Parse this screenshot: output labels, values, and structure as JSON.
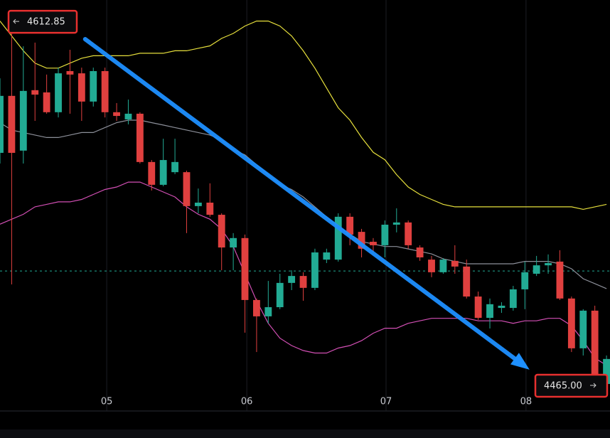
{
  "chart_data": {
    "type": "candlestick",
    "xlim": [
      0,
      52.3
    ],
    "ylim": [
      4455.6,
      4621.5
    ],
    "xticks": [
      {
        "value": 9.15,
        "label": "05"
      },
      {
        "value": 21.16,
        "label": "06"
      },
      {
        "value": 33.1,
        "label": "07"
      },
      {
        "value": 45.1,
        "label": "08"
      }
    ],
    "grid": true,
    "up_color": "#22ab94",
    "down_color": "#e0403f",
    "open": [
      4559.8,
      4582.8,
      4560.7,
      4585.1,
      4584.2,
      4576.2,
      4592.8,
      4591.9,
      4580.5,
      4592.8,
      4576.2,
      4573.3,
      4575.6,
      4556.1,
      4546.9,
      4552.0,
      4552.0,
      4538.3,
      4539.7,
      4534.8,
      4521.6,
      4525.4,
      4500.4,
      4493.8,
      4497.5,
      4507.3,
      4510.1,
      4505.3,
      4516.7,
      4516.7,
      4534.0,
      4527.9,
      4523.9,
      4522.5,
      4530.8,
      4531.7,
      4521.6,
      4516.7,
      4511.6,
      4516.2,
      4513.9,
      4501.8,
      4493.2,
      4497.2,
      4497.2,
      4504.7,
      4511.0,
      4514.4,
      4515.9,
      4501.0,
      4480.9,
      4496.1,
      4466.5
    ],
    "high": [
      4589.9,
      4612.85,
      4602.8,
      4604.3,
      4591.4,
      4594.2,
      4601.4,
      4594.2,
      4594.2,
      4594.2,
      4579.9,
      4581.3,
      4576.2,
      4556.9,
      4565.5,
      4565.5,
      4552.6,
      4545.4,
      4547.5,
      4535.4,
      4527.4,
      4526.8,
      4501.0,
      4508.1,
      4511.0,
      4512.4,
      4511.6,
      4521.1,
      4521.1,
      4535.4,
      4535.4,
      4529.1,
      4525.4,
      4532.5,
      4537.4,
      4532.5,
      4522.5,
      4518.2,
      4517.3,
      4522.5,
      4516.7,
      4503.8,
      4501.0,
      4499.5,
      4506.1,
      4515.9,
      4518.2,
      4518.8,
      4520.5,
      4501.8,
      4496.7,
      4498.1,
      4478.0
    ],
    "low": [
      4555.5,
      4506.7,
      4555.5,
      4572.7,
      4575.6,
      4574.1,
      4575.6,
      4572.7,
      4578.5,
      4574.1,
      4572.7,
      4571.3,
      4555.5,
      4544.6,
      4546.3,
      4551.2,
      4527.4,
      4535.4,
      4534.0,
      4512.4,
      4512.4,
      4487.2,
      4479.4,
      4490.9,
      4496.7,
      4504.4,
      4500.1,
      4504.4,
      4515.3,
      4515.9,
      4522.5,
      4517.6,
      4519.6,
      4517.6,
      4527.7,
      4521.1,
      4516.2,
      4509.6,
      4511.0,
      4511.0,
      4501.0,
      4492.4,
      4488.9,
      4495.2,
      4496.1,
      4496.7,
      4510.1,
      4511.0,
      4500.4,
      4479.4,
      4478.0,
      4463.6,
      4463.6
    ],
    "close": [
      4582.8,
      4559.8,
      4584.8,
      4583.3,
      4576.2,
      4591.9,
      4591.4,
      4580.5,
      4592.8,
      4576.2,
      4574.7,
      4575.6,
      4556.1,
      4546.9,
      4556.9,
      4556.1,
      4538.3,
      4539.7,
      4534.8,
      4521.6,
      4525.4,
      4500.4,
      4493.8,
      4497.5,
      4507.3,
      4510.1,
      4505.3,
      4519.6,
      4519.6,
      4534.0,
      4526.8,
      4521.1,
      4522.5,
      4530.8,
      4531.7,
      4522.5,
      4517.6,
      4511.6,
      4516.7,
      4513.9,
      4501.8,
      4493.2,
      4498.7,
      4498.1,
      4504.7,
      4511.6,
      4514.4,
      4515.3,
      4501.0,
      4480.9,
      4496.1,
      4465.7,
      4476.6
    ],
    "series": [
      {
        "color": "#e6df3c",
        "values": [
          4613,
          4607,
          4601,
          4596,
          4594,
          4594,
          4596,
          4598,
          4599,
          4599,
          4599,
          4599,
          4600,
          4600,
          4600,
          4601,
          4601,
          4602,
          4603,
          4606,
          4608,
          4611,
          4613,
          4613,
          4611,
          4607,
          4601,
          4594,
          4586,
          4578,
          4573,
          4566,
          4560,
          4557,
          4551,
          4546,
          4543,
          4541,
          4539,
          4538,
          4538,
          4538,
          4538,
          4538,
          4538,
          4538,
          4538,
          4538,
          4538,
          4538,
          4537,
          4538,
          4539
        ]
      },
      {
        "color": "#8c8f99",
        "values": [
          4572,
          4569,
          4568,
          4567,
          4566,
          4566,
          4567,
          4568,
          4568,
          4570,
          4572,
          4573,
          4573,
          4572,
          4571,
          4570,
          4569,
          4568,
          4567,
          4565,
          4561,
          4559,
          4555,
          4551,
          4547,
          4545,
          4542,
          4538,
          4534,
          4530,
          4527,
          4524,
          4523,
          4522,
          4522,
          4521,
          4520,
          4519,
          4517,
          4516,
          4515,
          4515,
          4515,
          4515,
          4515,
          4516,
          4516,
          4516,
          4515,
          4513,
          4509,
          4507,
          4505
        ]
      },
      {
        "color": "#d24fb4",
        "values": [
          4531,
          4533,
          4535,
          4538,
          4539,
          4540,
          4540,
          4541,
          4543,
          4545,
          4546,
          4548,
          4548,
          4546,
          4544,
          4542,
          4538,
          4535,
          4533,
          4529,
          4522,
          4511,
          4500,
          4491,
          4485,
          4482,
          4480,
          4479,
          4479,
          4481,
          4482,
          4484,
          4487,
          4489,
          4489,
          4491,
          4492,
          4493,
          4493,
          4493,
          4493,
          4492,
          4492,
          4492,
          4491,
          4492,
          4492,
          4493,
          4493,
          4490,
          4484,
          4477,
          4474
        ]
      }
    ],
    "price_line": {
      "value": 4512.1,
      "color": "#22ab94"
    },
    "trend_arrow": {
      "x": [
        7.3,
        45.4
      ],
      "y": [
        4605.7,
        4472.3
      ],
      "color": "#1e90ff"
    },
    "price_labels": [
      {
        "value": 4612.85,
        "label": "4612.85"
      },
      {
        "value": 4465,
        "label": "4465.00"
      }
    ]
  }
}
